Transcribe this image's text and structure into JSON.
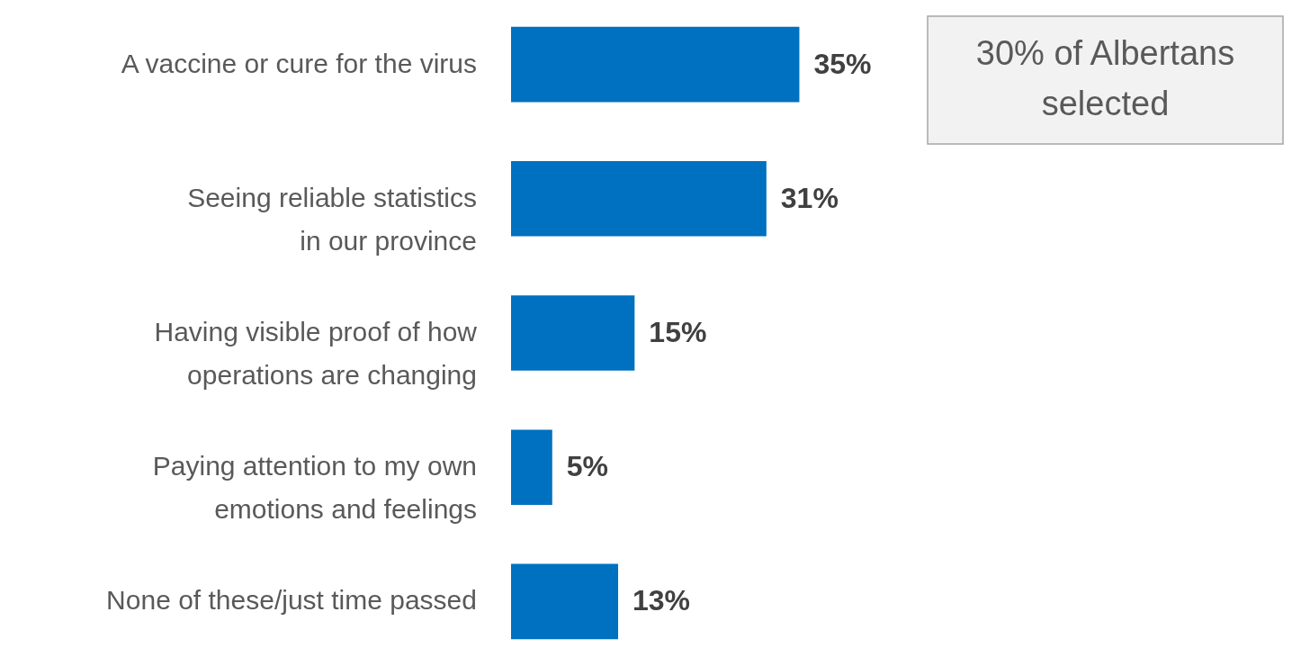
{
  "chart_data": {
    "type": "bar",
    "orientation": "horizontal",
    "categories": [
      "A vaccine or cure for the virus",
      "Seeing reliable statistics\nin our province",
      "Having visible proof of how\noperations are changing",
      "Paying attention to my own\nemotions and feelings",
      "None of these/just time passed"
    ],
    "values": [
      35,
      31,
      15,
      5,
      13
    ],
    "color": "#0070c0",
    "data_labels": true,
    "value_labels": [
      "35%",
      "31%",
      "15%",
      "5%",
      "13%"
    ],
    "annotations": [
      "30% of Albertans selected"
    ]
  }
}
